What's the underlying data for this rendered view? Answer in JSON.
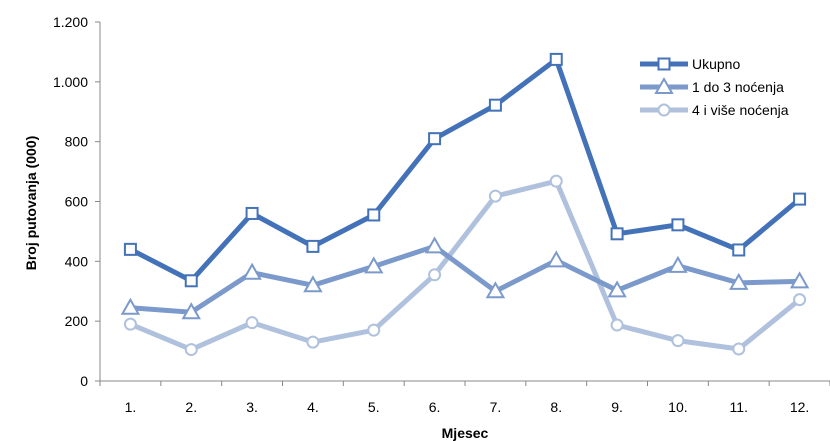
{
  "chart_data": {
    "type": "line",
    "title": "",
    "xlabel": "Mjesec",
    "ylabel": "Broj putovanja (000)",
    "categories": [
      "1.",
      "2.",
      "3.",
      "4.",
      "5.",
      "6.",
      "7.",
      "8.",
      "9.",
      "10.",
      "11.",
      "12."
    ],
    "ylim": [
      0,
      1200
    ],
    "yticks": [
      0,
      200,
      400,
      600,
      800,
      1000,
      1200
    ],
    "ytick_labels": [
      "0",
      "200",
      "400",
      "600",
      "800",
      "1.000",
      "1.200"
    ],
    "grid": false,
    "legend_position": "top-right",
    "series": [
      {
        "name": "Ukupno",
        "marker": "square",
        "color": "#4472b8",
        "values": [
          440,
          335,
          560,
          450,
          555,
          810,
          922,
          1075,
          492,
          522,
          438,
          608
        ]
      },
      {
        "name": "1 do 3 noćenja",
        "marker": "triangle",
        "color": "#7b9acb",
        "values": [
          245,
          230,
          362,
          320,
          383,
          450,
          300,
          403,
          303,
          385,
          328,
          333
        ]
      },
      {
        "name": "4 i više noćenja",
        "marker": "circle",
        "color": "#afc1dd",
        "values": [
          190,
          105,
          195,
          130,
          170,
          355,
          618,
          668,
          187,
          135,
          107,
          272
        ]
      }
    ]
  }
}
